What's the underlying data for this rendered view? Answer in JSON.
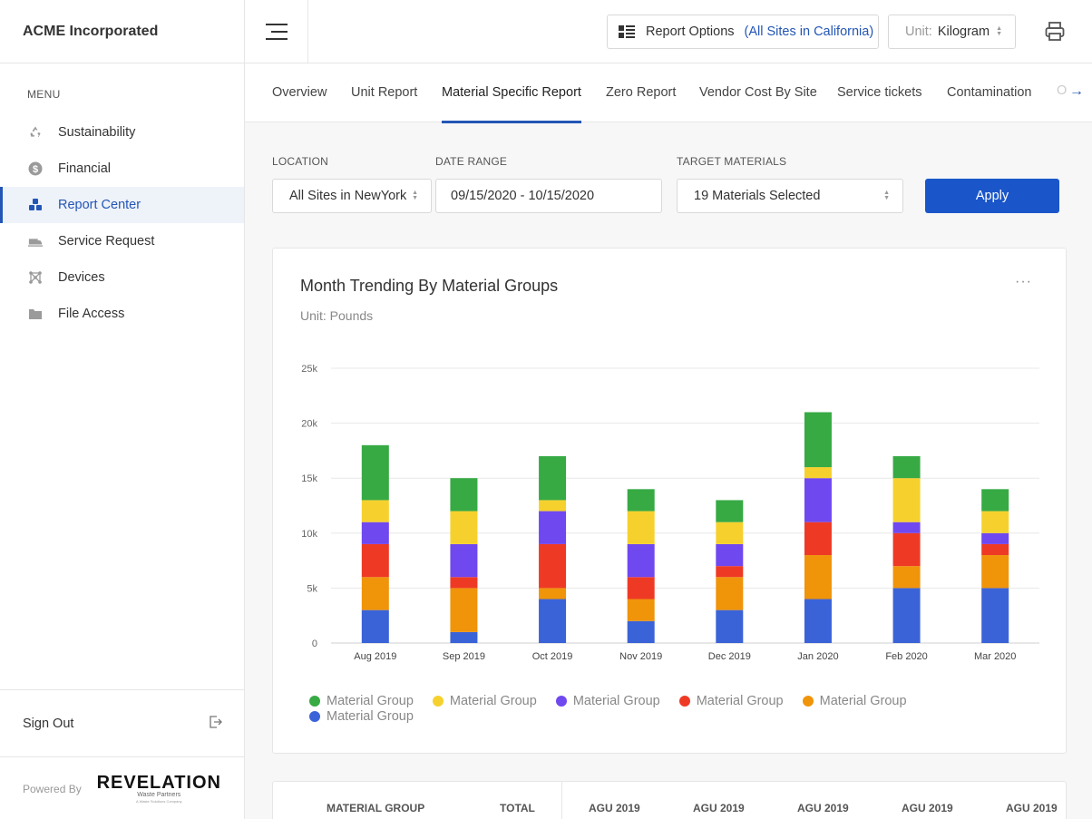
{
  "app": {
    "company": "ACME Incorporated"
  },
  "sidebar": {
    "menu_heading": "MENU",
    "items": [
      {
        "label": "Sustainability",
        "icon": "recycle-icon"
      },
      {
        "label": "Financial",
        "icon": "dollar-icon"
      },
      {
        "label": "Report Center",
        "icon": "report-center-icon",
        "active": true
      },
      {
        "label": "Service Request",
        "icon": "truck-icon"
      },
      {
        "label": "Devices",
        "icon": "devices-icon"
      },
      {
        "label": "File Access",
        "icon": "folder-icon"
      }
    ],
    "sign_out": "Sign Out",
    "powered_by": "Powered By",
    "logo": {
      "name": "REVELATION",
      "tagline": "Waste Partners",
      "subtag": "A Waste Solutions Company"
    }
  },
  "topbar": {
    "report_options_label": "Report Options",
    "report_options_value": "(All Sites in California)",
    "unit_key": "Unit:",
    "unit_value": "Kilogram"
  },
  "tabs": [
    {
      "label": "Overview"
    },
    {
      "label": "Unit Report"
    },
    {
      "label": "Material Specific Report",
      "active": true
    },
    {
      "label": "Zero Report"
    },
    {
      "label": "Vendor Cost By Site"
    },
    {
      "label": "Service tickets"
    },
    {
      "label": "Contamination"
    },
    {
      "label": "O"
    }
  ],
  "filters": {
    "location_label": "LOCATION",
    "location_value": "All Sites in NewYork",
    "date_label": "DATE RANGE",
    "date_value": "09/15/2020 - 10/15/2020",
    "materials_label": "TARGET MATERIALS",
    "materials_value": "19 Materials Selected",
    "apply_label": "Apply"
  },
  "chart_card": {
    "title": "Month Trending By Material Groups",
    "subtitle": "Unit: Pounds",
    "more": "···"
  },
  "chart_data": {
    "type": "bar",
    "stacked": true,
    "categories": [
      "Aug 2019",
      "Sep 2019",
      "Oct 2019",
      "Nov 2019",
      "Dec 2019",
      "Jan 2020",
      "Feb 2020",
      "Mar 2020"
    ],
    "ylim": [
      0,
      25000
    ],
    "yticks": [
      0,
      5000,
      10000,
      15000,
      20000,
      25000
    ],
    "ytick_labels": [
      "0",
      "5k",
      "10k",
      "15k",
      "20k",
      "25k"
    ],
    "grid": true,
    "legend_position": "bottom-left",
    "series": [
      {
        "name": "Material Group",
        "color": "#3b63d8",
        "values": [
          3000,
          1000,
          4000,
          2000,
          3000,
          4000,
          5000,
          5000
        ]
      },
      {
        "name": "Material Group",
        "color": "#f0940a",
        "values": [
          3000,
          4000,
          1000,
          2000,
          3000,
          4000,
          2000,
          3000
        ]
      },
      {
        "name": "Material Group",
        "color": "#ee3a25",
        "values": [
          3000,
          1000,
          4000,
          2000,
          1000,
          3000,
          3000,
          1000
        ]
      },
      {
        "name": "Material Group",
        "color": "#7048f0",
        "values": [
          2000,
          3000,
          3000,
          3000,
          2000,
          4000,
          1000,
          1000
        ]
      },
      {
        "name": "Material Group",
        "color": "#f6d12e",
        "values": [
          2000,
          3000,
          1000,
          3000,
          2000,
          1000,
          4000,
          2000
        ]
      },
      {
        "name": "Material Group",
        "color": "#37aa44",
        "values": [
          5000,
          3000,
          4000,
          2000,
          2000,
          5000,
          2000,
          2000
        ]
      }
    ],
    "legend_order": [
      5,
      4,
      3,
      2,
      1,
      0
    ]
  },
  "table": {
    "headers": [
      "MATERIAL GROUP",
      "TOTAL",
      "AGU 2019",
      "AGU 2019",
      "AGU 2019",
      "AGU 2019",
      "AGU 2019"
    ]
  }
}
